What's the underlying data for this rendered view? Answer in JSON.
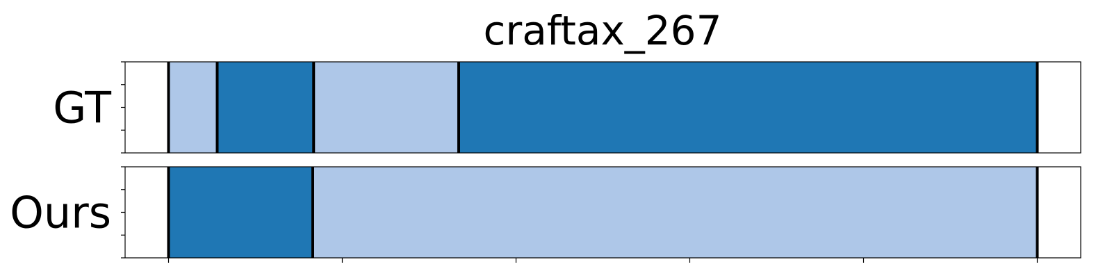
{
  "chart_data": {
    "type": "segmentation-bar",
    "title": "craftax_267",
    "xlim": [
      0,
      1100
    ],
    "x_ticks": [
      50,
      250,
      450,
      650,
      850,
      1050
    ],
    "colors": {
      "dark": "#1f77b4",
      "light": "#aec7e8",
      "boundary": "#000000"
    },
    "rows": [
      {
        "label": "GT",
        "segments": [
          {
            "start": 50,
            "end": 106,
            "class": "light"
          },
          {
            "start": 106,
            "end": 217,
            "class": "dark"
          },
          {
            "start": 217,
            "end": 384,
            "class": "light"
          },
          {
            "start": 384,
            "end": 1050,
            "class": "dark"
          }
        ],
        "boundaries": [
          50,
          106,
          217,
          384,
          1050
        ]
      },
      {
        "label": "Ours",
        "segments": [
          {
            "start": 50,
            "end": 216,
            "class": "dark"
          },
          {
            "start": 216,
            "end": 1050,
            "class": "light"
          }
        ],
        "boundaries": [
          50,
          216,
          1050
        ]
      }
    ]
  }
}
